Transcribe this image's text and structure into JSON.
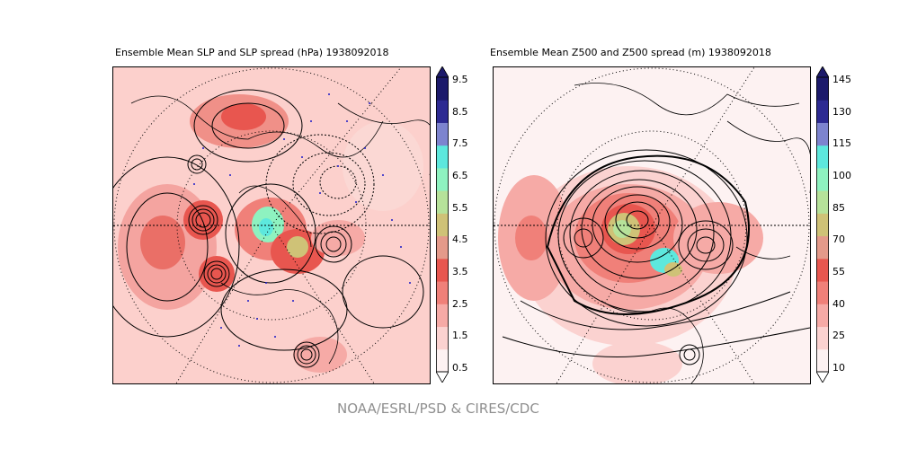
{
  "panels": [
    {
      "title": "Ensemble Mean SLP and SLP spread (hPa) 1938092018",
      "colorbar": {
        "ticks": [
          "9.5",
          "8.5",
          "7.5",
          "6.5",
          "5.5",
          "4.5",
          "3.5",
          "2.5",
          "1.5",
          "0.5"
        ]
      }
    },
    {
      "title": "Ensemble Mean Z500 and Z500 spread (m) 1938092018",
      "colorbar": {
        "ticks": [
          "145",
          "130",
          "115",
          "100",
          "85",
          "70",
          "55",
          "40",
          "25",
          "10"
        ]
      }
    }
  ],
  "colors": {
    "levels": [
      "#fdf2f2",
      "#fbd2d0",
      "#f6aaa6",
      "#f08079",
      "#e8564f",
      "#e49a8a",
      "#cfc277",
      "#b6e29a",
      "#8ef2c0",
      "#5de8dd",
      "#7d84cf",
      "#2d2a92",
      "#1c1a6b"
    ]
  },
  "credit": "NOAA/ESRL/PSD & CIRES/CDC"
}
